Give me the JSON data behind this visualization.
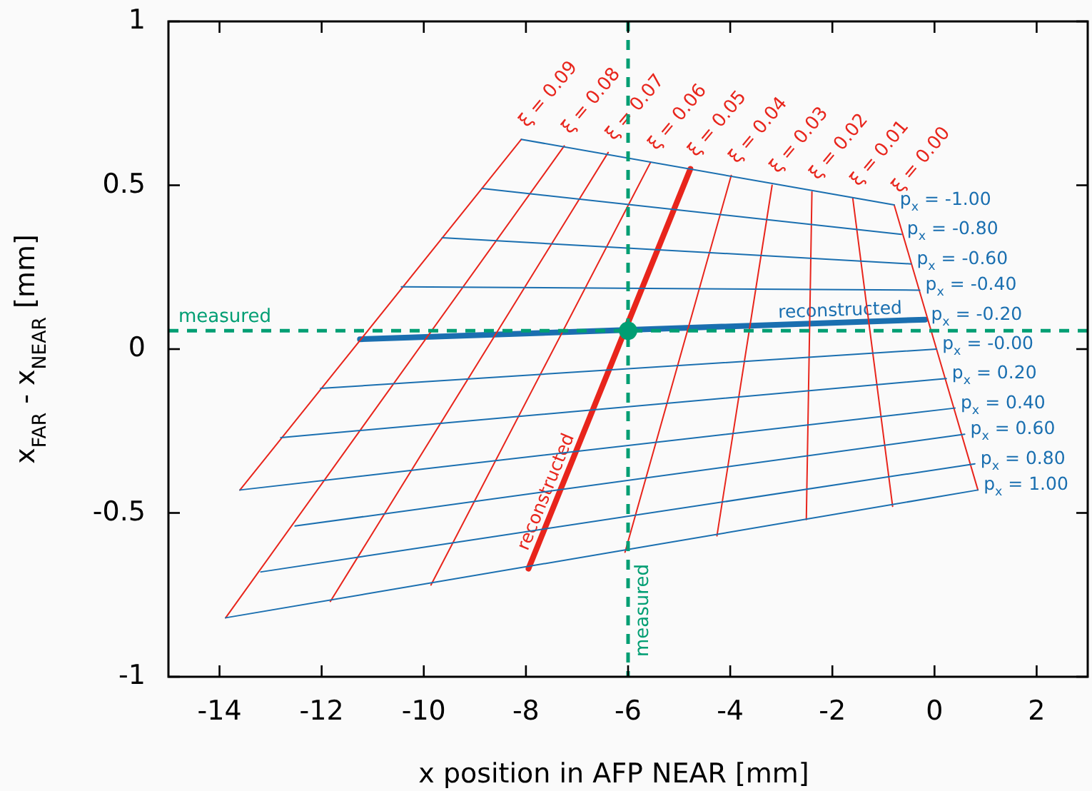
{
  "chart_data": {
    "type": "line",
    "xlabel": "x position in AFP NEAR [mm]",
    "ylabel": "x$_{FAR}$ - x$_{NEAR}$ [mm]",
    "xlim": [
      -15,
      3
    ],
    "xticks": [
      -14,
      -12,
      -10,
      -8,
      -6,
      -4,
      -2,
      0,
      2
    ],
    "ylim": [
      -1,
      1
    ],
    "yticks": [
      -1,
      -0.5,
      0,
      0.5,
      1
    ],
    "grid": false,
    "annotations": [
      {
        "text": "reconstructed",
        "x": -7.38,
        "y": -0.45
      },
      {
        "text": "reconstructed",
        "x": -1.84,
        "y": 0.08
      }
    ],
    "ref_lines": [
      {
        "axis": "x",
        "value": -6,
        "label": "measured",
        "color": "#009e73",
        "line_style": "dashed"
      },
      {
        "axis": "y",
        "value": 0.056,
        "label": "measured",
        "color": "#009e73",
        "line_style": "dashed"
      }
    ],
    "series": [
      {
        "name": "ξ = 0.09",
        "color": "#e8251c",
        "x": [
          -8.09,
          -13.6
        ],
        "values": [
          0.64,
          -0.43
        ]
      },
      {
        "name": "ξ = 0.08",
        "color": "#e8251c",
        "x": [
          -7.25,
          -13.88
        ],
        "values": [
          0.62,
          -0.82
        ]
      },
      {
        "name": "ξ = 0.07",
        "color": "#e8251c",
        "x": [
          -6.39,
          -11.83
        ],
        "values": [
          0.6,
          -0.77
        ]
      },
      {
        "name": "ξ = 0.06",
        "color": "#e8251c",
        "x": [
          -5.56,
          -9.86
        ],
        "values": [
          0.57,
          -0.72
        ]
      },
      {
        "name": "ξ = 0.05",
        "color": "#e8251c",
        "x": [
          -4.78,
          -7.95
        ],
        "values": [
          0.55,
          -0.67
        ]
      },
      {
        "name": "ξ = 0.04",
        "color": "#e8251c",
        "x": [
          -3.98,
          -6.06
        ],
        "values": [
          0.53,
          -0.62
        ]
      },
      {
        "name": "ξ = 0.03",
        "color": "#e8251c",
        "x": [
          -3.18,
          -4.26
        ],
        "values": [
          0.5,
          -0.57
        ]
      },
      {
        "name": "ξ = 0.02",
        "color": "#e8251c",
        "x": [
          -2.4,
          -2.51
        ],
        "values": [
          0.48,
          -0.52
        ]
      },
      {
        "name": "ξ = 0.01",
        "color": "#e8251c",
        "x": [
          -1.6,
          -0.82
        ],
        "values": [
          0.46,
          -0.48
        ]
      },
      {
        "name": "ξ = 0.00",
        "color": "#e8251c",
        "x": [
          -0.79,
          0.85
        ],
        "values": [
          0.44,
          -0.43
        ]
      },
      {
        "name": "p$_{x}$ = -1.00",
        "color": "#1a6fb0",
        "x": [
          -8.09,
          -0.79
        ],
        "values": [
          0.64,
          0.44
        ]
      },
      {
        "name": "p$_{x}$ = -0.80",
        "color": "#1a6fb0",
        "x": [
          -8.86,
          -0.65
        ],
        "values": [
          0.49,
          0.35
        ]
      },
      {
        "name": "p$_{x}$ = -0.60",
        "color": "#1a6fb0",
        "x": [
          -9.64,
          -0.46
        ],
        "values": [
          0.34,
          0.26
        ]
      },
      {
        "name": "p$_{x}$ = -0.40",
        "color": "#1a6fb0",
        "x": [
          -10.44,
          -0.29
        ],
        "values": [
          0.19,
          0.18
        ]
      },
      {
        "name": "p$_{x}$ = -0.20",
        "color": "#1a6fb0",
        "x": [
          -11.25,
          -0.18
        ],
        "values": [
          0.03,
          0.09
        ]
      },
      {
        "name": "p$_{x}$ = -0.00",
        "color": "#1a6fb0",
        "x": [
          -12.02,
          0.04
        ],
        "values": [
          -0.12,
          0
        ]
      },
      {
        "name": "p$_{x}$ = 0.20",
        "color": "#1a6fb0",
        "x": [
          -12.8,
          0.23
        ],
        "values": [
          -0.27,
          -0.09
        ]
      },
      {
        "name": "p$_{x}$ = 0.40",
        "color": "#1a6fb0",
        "x": [
          -13.6,
          0.4
        ],
        "values": [
          -0.43,
          -0.18
        ]
      },
      {
        "name": "p$_{x}$ = 0.60",
        "color": "#1a6fb0",
        "x": [
          -12.52,
          0.59
        ],
        "values": [
          -0.54,
          -0.26
        ]
      },
      {
        "name": "p$_{x}$ = 0.80",
        "color": "#1a6fb0",
        "x": [
          -13.19,
          0.79
        ],
        "values": [
          -0.68,
          -0.35
        ]
      },
      {
        "name": "p$_{x}$ = 1.00",
        "color": "#1a6fb0",
        "x": [
          -13.88,
          0.85
        ],
        "values": [
          -0.82,
          -0.43
        ]
      },
      {
        "type": "scatter",
        "marker": "circle",
        "color": "#009e73",
        "x": [
          -6
        ],
        "values": [
          0.056
        ]
      }
    ]
  }
}
